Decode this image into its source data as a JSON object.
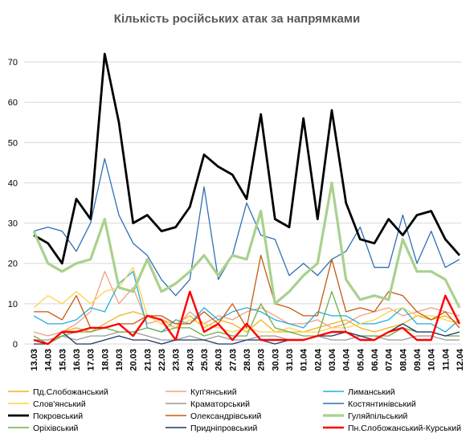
{
  "chart_data": {
    "type": "line",
    "title": "Кількість російських атак за напрямками",
    "ylim": [
      0,
      75
    ],
    "yticks": [
      0,
      10,
      20,
      30,
      40,
      50,
      60,
      70
    ],
    "grid": true,
    "legend_position": "bottom",
    "categories": [
      "13.03",
      "14.03",
      "15.03",
      "16.03",
      "17.03",
      "18.03",
      "19.03",
      "20.03",
      "21.03",
      "22.03",
      "23.03",
      "24.03",
      "25.03",
      "26.03",
      "27.03",
      "28.03",
      "29.03",
      "30.03",
      "31.03",
      "01.04",
      "02.04",
      "03.04",
      "04.04",
      "05.04",
      "06.04",
      "07.04",
      "08.04",
      "09.04",
      "10.04",
      "11.04",
      "12.04"
    ],
    "series": [
      {
        "name": "Пд.Слобожанський",
        "color": "#f2b21f",
        "width": 1.3,
        "values": [
          1,
          0,
          3,
          4,
          3,
          5,
          7,
          8,
          7,
          6,
          5,
          7,
          4,
          6,
          5,
          3,
          6,
          3,
          3,
          3,
          4,
          5,
          6,
          4,
          3,
          4,
          5,
          7,
          6,
          7,
          5
        ]
      },
      {
        "name": "Куп'янський",
        "color": "#f1a07e",
        "width": 1.3,
        "values": [
          3,
          2,
          3,
          5,
          8,
          18,
          10,
          14,
          5,
          6,
          4,
          8,
          5,
          7,
          6,
          8,
          9,
          7,
          5,
          5,
          6,
          4,
          5,
          7,
          8,
          9,
          7,
          8,
          9,
          8,
          7
        ]
      },
      {
        "name": "Лиманський",
        "color": "#22aee0",
        "width": 1.3,
        "values": [
          7,
          5,
          5,
          6,
          9,
          8,
          15,
          18,
          4,
          3,
          6,
          5,
          9,
          6,
          8,
          9,
          8,
          6,
          5,
          4,
          8,
          7,
          7,
          5,
          5,
          6,
          9,
          5,
          5,
          3,
          6
        ]
      },
      {
        "name": "Слов'янський",
        "color": "#fdd44a",
        "width": 1.3,
        "values": [
          9,
          12,
          10,
          13,
          10,
          13,
          14,
          19,
          7,
          5,
          4,
          6,
          5,
          4,
          3,
          4,
          3,
          3,
          4,
          3,
          3,
          4,
          4,
          5,
          6,
          8,
          9,
          7,
          7,
          6,
          5
        ]
      },
      {
        "name": "Краматорський",
        "color": "#999999",
        "width": 1.3,
        "values": [
          1,
          1,
          2,
          1,
          2,
          2,
          3,
          3,
          2,
          1,
          1,
          2,
          1,
          2,
          1,
          1,
          2,
          2,
          1,
          1,
          2,
          1,
          1,
          2,
          2,
          1,
          1,
          2,
          2,
          1,
          1
        ]
      },
      {
        "name": "Костянтинівський",
        "color": "#2f6eb3",
        "width": 1.3,
        "values": [
          28,
          29,
          28,
          23,
          30,
          46,
          32,
          25,
          22,
          16,
          12,
          16,
          39,
          16,
          22,
          35,
          27,
          26,
          17,
          20,
          17,
          21,
          23,
          29,
          19,
          19,
          32,
          20,
          28,
          19,
          21
        ]
      },
      {
        "name": "Покровський",
        "color": "#000000",
        "width": 2.8,
        "values": [
          27,
          25,
          20,
          36,
          31,
          72,
          55,
          30,
          32,
          28,
          29,
          34,
          47,
          44,
          42,
          36,
          57,
          31,
          29,
          56,
          31,
          58,
          35,
          26,
          25,
          31,
          27,
          32,
          33,
          26,
          22
        ]
      },
      {
        "name": "Олександрівський",
        "color": "#c55a11",
        "width": 1.3,
        "values": [
          8,
          8,
          6,
          12,
          4,
          4,
          5,
          5,
          7,
          7,
          5,
          5,
          8,
          5,
          10,
          4,
          22,
          10,
          9,
          7,
          7,
          21,
          8,
          9,
          8,
          13,
          12,
          8,
          6,
          8,
          4
        ]
      },
      {
        "name": "Гуляйпільський",
        "color": "#a9d18e",
        "width": 3.2,
        "values": [
          28,
          20,
          18,
          20,
          21,
          31,
          14,
          13,
          21,
          13,
          15,
          18,
          22,
          17,
          22,
          21,
          33,
          10,
          13,
          17,
          20,
          40,
          16,
          11,
          12,
          11,
          26,
          18,
          18,
          16,
          9
        ]
      },
      {
        "name": "Оріхівський",
        "color": "#70ad47",
        "width": 1.3,
        "values": [
          2,
          0,
          2,
          3,
          3,
          4,
          3,
          3,
          4,
          3,
          4,
          4,
          2,
          3,
          2,
          2,
          10,
          4,
          3,
          2,
          2,
          13,
          3,
          2,
          2,
          2,
          4,
          3,
          3,
          2,
          2
        ]
      },
      {
        "name": "Придніпровський",
        "color": "#1f3864",
        "width": 1.3,
        "values": [
          0,
          0,
          3,
          0,
          0,
          1,
          2,
          1,
          1,
          0,
          1,
          1,
          1,
          0,
          0,
          1,
          1,
          0,
          1,
          1,
          2,
          2,
          3,
          2,
          1,
          3,
          5,
          3,
          3,
          2,
          3
        ]
      },
      {
        "name": "Пн.Слобожанський-Курський",
        "color": "#ff0000",
        "width": 2.4,
        "values": [
          1,
          0,
          3,
          3,
          4,
          4,
          5,
          2,
          7,
          6,
          1,
          13,
          3,
          5,
          1,
          5,
          1,
          1,
          1,
          1,
          2,
          3,
          3,
          1,
          1,
          3,
          4,
          1,
          1,
          12,
          5
        ]
      }
    ]
  }
}
